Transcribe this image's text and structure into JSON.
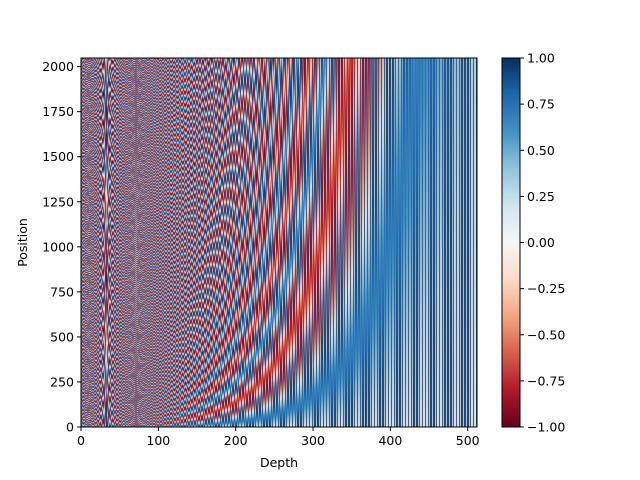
{
  "chart_data": {
    "type": "heatmap",
    "title": "",
    "xlabel": "Depth",
    "ylabel": "Position",
    "xlim": [
      0,
      512
    ],
    "ylim": [
      0,
      2048
    ],
    "shape": {
      "positions": 2048,
      "depth": 512
    },
    "formula": "sinusoidal positional encoding: sin(pos / 10000^(2i/d)) on even depth, cos(pos / 10000^(2i/d)) on odd depth",
    "xticks": [
      "0",
      "100",
      "200",
      "300",
      "400",
      "500"
    ],
    "yticks": [
      "0",
      "250",
      "500",
      "750",
      "1000",
      "1250",
      "1500",
      "1750",
      "2000"
    ],
    "colormap": "RdBu",
    "colorbar": {
      "vmin": -1.0,
      "vmax": 1.0,
      "ticks": [
        "1.00",
        "0.75",
        "0.50",
        "0.25",
        "0.00",
        "−0.25",
        "−0.50",
        "−0.75",
        "−1.00"
      ]
    },
    "colors": {
      "low": "#67001f",
      "mid": "#f7f7f7",
      "high": "#053061"
    }
  }
}
